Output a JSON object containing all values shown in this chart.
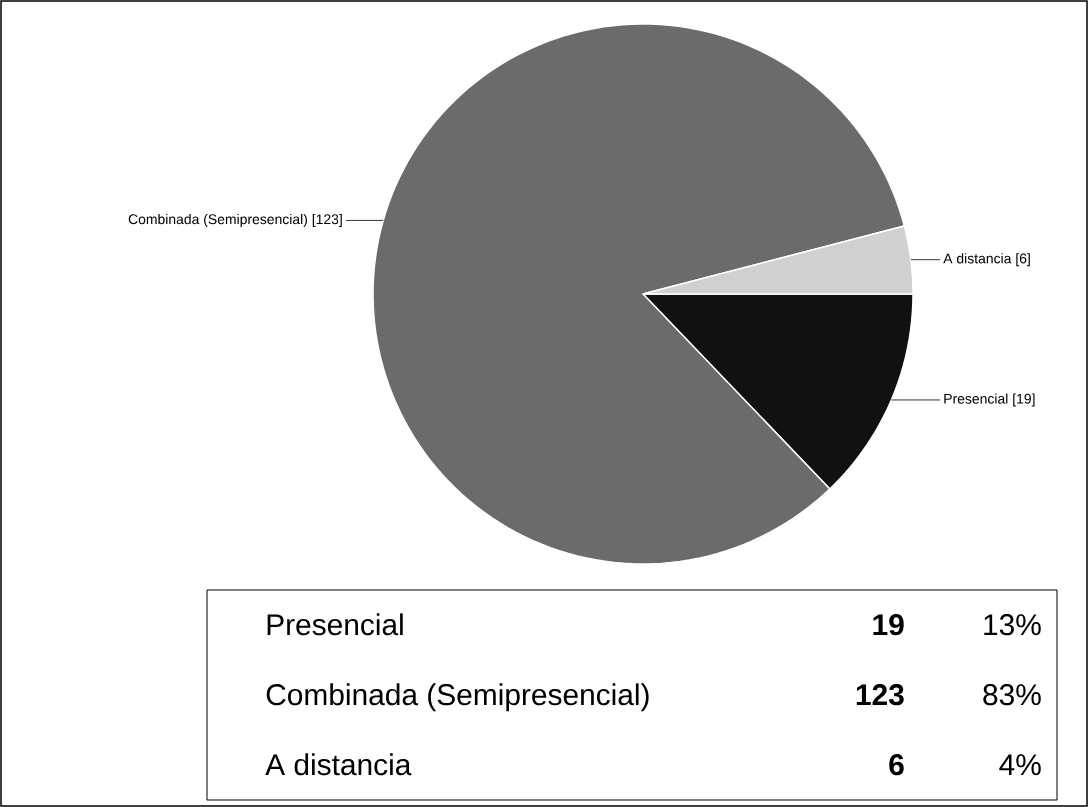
{
  "chart_data": {
    "type": "pie",
    "categories": [
      "Presencial",
      "Combinada (Semipresencial)",
      "A distancia"
    ],
    "values": [
      19,
      123,
      6
    ],
    "colors": [
      "#111111",
      "#6b6b6b",
      "#d0d0d0"
    ],
    "value_labels": [
      "[19]",
      "[123]",
      "[6]"
    ],
    "annotations": [
      "19",
      "13%",
      "123",
      "83%",
      "6",
      "4%"
    ]
  }
}
